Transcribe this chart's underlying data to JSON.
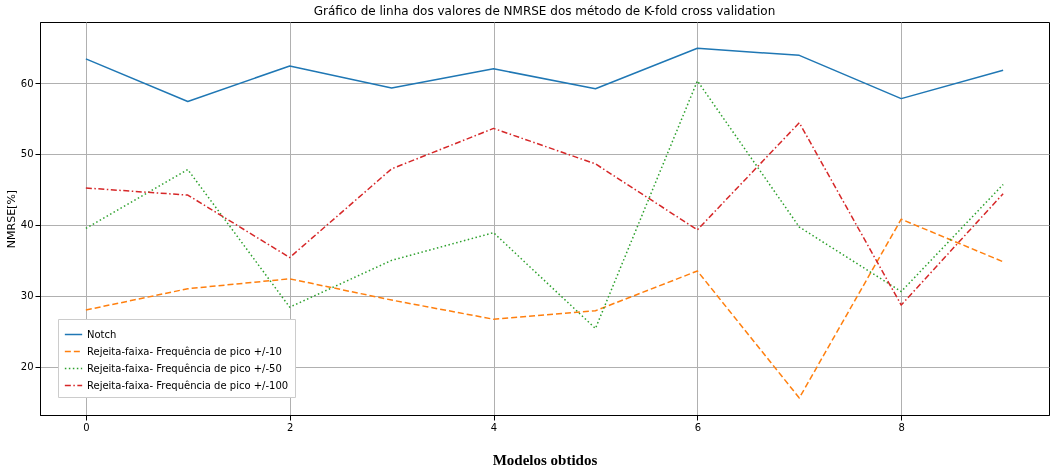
{
  "chart_data": {
    "type": "line",
    "title": "Gráfico de linha dos valores de NMRSE dos método de K-fold cross validation",
    "xlabel": "Modelos obtidos",
    "ylabel": "NMRSE[%]",
    "x": [
      0,
      1,
      2,
      3,
      4,
      5,
      6,
      7,
      8,
      9
    ],
    "series": [
      {
        "name": "Notch",
        "color": "#1f77b4",
        "line_style": "solid",
        "values": [
          63.4,
          57.4,
          62.4,
          59.3,
          62.0,
          59.2,
          64.9,
          63.9,
          57.8,
          61.8
        ]
      },
      {
        "name": "Rejeita-faixa- Frequência de pico +/-10",
        "color": "#ff7f0e",
        "line_style": "dashed",
        "values": [
          28.0,
          31.0,
          32.4,
          29.4,
          26.7,
          27.9,
          33.5,
          15.6,
          40.8,
          34.8
        ]
      },
      {
        "name": "Rejeita-faixa- Frequência de pico +/-50",
        "color": "#2ca02c",
        "line_style": "dotted",
        "values": [
          39.5,
          47.8,
          28.4,
          35.0,
          38.9,
          25.4,
          60.3,
          39.7,
          30.6,
          45.7
        ]
      },
      {
        "name": "Rejeita-faixa- Frequência de pico +/-100",
        "color": "#d62728",
        "line_style": "dashdot",
        "values": [
          45.2,
          44.2,
          35.4,
          47.9,
          53.6,
          48.6,
          39.3,
          54.4,
          28.7,
          44.4
        ]
      }
    ],
    "xlim": [
      -0.45,
      9.45
    ],
    "ylim": [
      13.2,
      68.6
    ],
    "xticks": [
      0,
      2,
      4,
      6,
      8
    ],
    "yticks": [
      20,
      30,
      40,
      50,
      60
    ],
    "grid": true,
    "legend": "bottom left",
    "marker": "none"
  }
}
